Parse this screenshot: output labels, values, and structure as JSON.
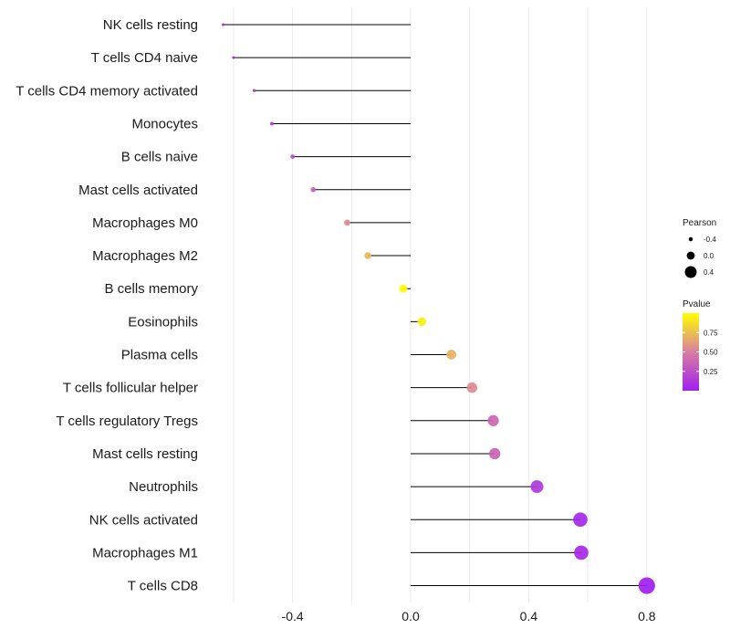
{
  "chart_data": {
    "type": "lollipop",
    "title": "",
    "xlabel": "",
    "ylabel": "",
    "xlim": [
      -0.64,
      0.82
    ],
    "x_ticks": [
      -0.4,
      0.0,
      0.4,
      0.8
    ],
    "x_tick_labels": [
      "-0.4",
      "0.0",
      "0.4",
      "0.8"
    ],
    "grid": true,
    "categories": [
      "NK cells resting",
      "T cells CD4 naive",
      "T cells CD4 memory activated",
      "Monocytes",
      "B cells naive",
      "Mast cells activated",
      "Macrophages M0",
      "Macrophages M2",
      "B cells memory",
      "Eosinophils",
      "Plasma cells",
      "T cells follicular helper",
      "T cells regulatory  Tregs",
      "Mast cells resting",
      "Neutrophils",
      "NK cells activated",
      "Macrophages M1",
      "T cells CD8"
    ],
    "values": [
      -0.635,
      -0.6,
      -0.53,
      -0.47,
      -0.4,
      -0.33,
      -0.215,
      -0.145,
      -0.025,
      0.038,
      0.138,
      0.208,
      0.28,
      0.285,
      0.428,
      0.575,
      0.578,
      0.8
    ],
    "pvalues": [
      0.02,
      0.03,
      0.09,
      0.14,
      0.22,
      0.32,
      0.55,
      0.72,
      0.99,
      0.94,
      0.7,
      0.55,
      0.38,
      0.36,
      0.14,
      0.05,
      0.05,
      0.002
    ],
    "size_legend": {
      "title": "Pearson",
      "labels": [
        "-0.4",
        "0.0",
        "0.4"
      ],
      "values": [
        -0.4,
        0.0,
        0.4
      ]
    },
    "color_legend": {
      "title": "Pvalue",
      "labels": [
        "0.75",
        "0.50",
        "0.25"
      ],
      "values": [
        0.75,
        0.5,
        0.25
      ],
      "range": [
        0.0,
        1.0
      ],
      "low_color": "#a020f0",
      "high_color": "#ffff00"
    }
  }
}
